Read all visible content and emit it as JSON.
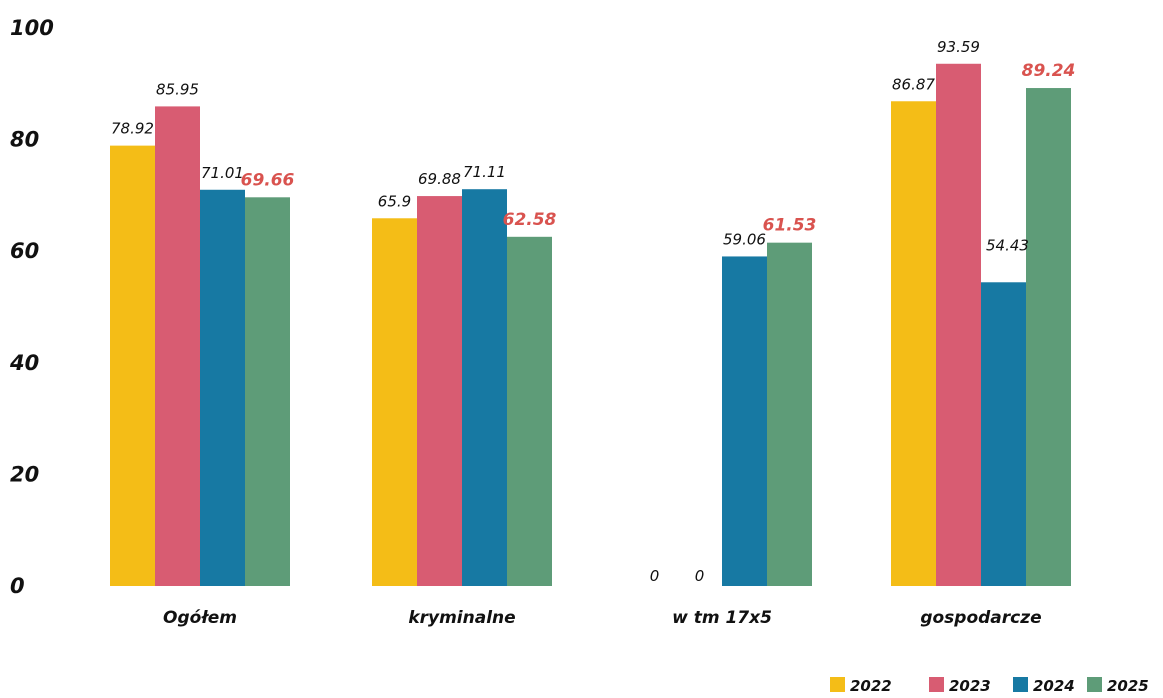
{
  "chart_data": {
    "type": "bar",
    "categories": [
      "Ogółem",
      "kryminalne",
      "w tm 17x5",
      "gospodarcze"
    ],
    "series": [
      {
        "name": "2022",
        "color": "#f4bd17",
        "values": [
          78.92,
          65.9,
          0,
          86.87
        ],
        "labels": [
          "78.92",
          "65.9",
          "0",
          "86.87"
        ]
      },
      {
        "name": "2023",
        "color": "#d85c72",
        "values": [
          85.95,
          69.88,
          0,
          93.59
        ],
        "labels": [
          "85.95",
          "69.88",
          "0",
          "93.59"
        ]
      },
      {
        "name": "2024",
        "color": "#1779a3",
        "values": [
          71.01,
          71.11,
          59.06,
          54.43
        ],
        "labels": [
          "71.01",
          "71.11",
          "59.06",
          "54.43"
        ]
      },
      {
        "name": "2025",
        "color": "#5e9c78",
        "values": [
          69.66,
          62.58,
          61.53,
          89.24
        ],
        "labels": [
          "69.66",
          "62.58",
          "61.53",
          "89.24"
        ],
        "label_color": "#d9534f",
        "label_bold": true
      }
    ],
    "yticks": [
      "0",
      "20",
      "40",
      "60",
      "80",
      "100"
    ],
    "ylim": [
      0,
      100
    ],
    "grid": false,
    "legend_position": "bottom-right"
  }
}
